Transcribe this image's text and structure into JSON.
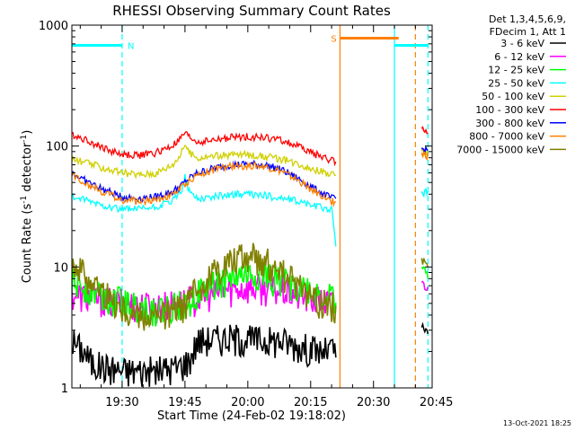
{
  "chart_data": {
    "type": "line",
    "title": "RHESSI Observing Summary Count Rates",
    "xlabel": "Start Time (24-Feb-02 19:18:02)",
    "ylabel_main": "Count Rate (s",
    "ylabel_sup1": "-1",
    "ylabel_mid": " detector",
    "ylabel_sup2": "-1",
    "ylabel_end": ")",
    "yscale": "log",
    "ylim": [
      1,
      1000
    ],
    "xlim_minutes": [
      0,
      86
    ],
    "xtick_labels": [
      "19:30",
      "19:45",
      "20:00",
      "20:15",
      "20:30",
      "20:45"
    ],
    "xtick_minutes": [
      12,
      27,
      42,
      57,
      72,
      87
    ],
    "ytick_labels": [
      "1",
      "10",
      "100",
      "1000"
    ],
    "ytick_values": [
      1,
      10,
      100,
      1000
    ],
    "legend_header": [
      "Det 1,3,4,5,6,9,",
      "FDecim 1, Att 1"
    ],
    "legend_position": "top-right",
    "series": [
      {
        "name": "3 - 6 keV",
        "color": "#000000",
        "x": [
          0,
          3,
          5,
          8,
          12,
          15,
          20,
          25,
          28,
          30,
          35,
          40,
          45,
          50,
          55,
          60,
          62,
          63
        ],
        "y": [
          2.5,
          2.0,
          1.6,
          1.5,
          1.4,
          1.4,
          1.4,
          1.5,
          1.7,
          2.5,
          2.6,
          2.6,
          2.5,
          2.5,
          2.2,
          2.0,
          2.1,
          2.0
        ],
        "post_x": [
          83.5,
          85
        ],
        "post_y": [
          3.2,
          2.8
        ]
      },
      {
        "name": "6 - 12 keV",
        "color": "#ff00ff",
        "x": [
          0,
          5,
          10,
          15,
          20,
          25,
          30,
          35,
          40,
          45,
          50,
          55,
          60,
          63
        ],
        "y": [
          6.0,
          5.6,
          5.2,
          4.9,
          4.8,
          5.0,
          5.6,
          6.3,
          6.8,
          6.8,
          6.4,
          5.8,
          5.2,
          5.0
        ],
        "post_x": [
          83.5,
          85
        ],
        "post_y": [
          7.5,
          6.5
        ]
      },
      {
        "name": "12 - 25 keV",
        "color": "#00ff00",
        "x": [
          0,
          5,
          10,
          15,
          20,
          25,
          30,
          35,
          40,
          45,
          50,
          55,
          60,
          63
        ],
        "y": [
          7.5,
          6.5,
          5.5,
          4.8,
          4.4,
          4.8,
          6.0,
          7.5,
          8.5,
          8.5,
          7.8,
          6.8,
          5.8,
          5.5
        ],
        "post_x": [
          83.5,
          85
        ],
        "post_y": [
          10.0,
          8.5
        ]
      },
      {
        "name": "25 - 50 keV",
        "color": "#00ffff",
        "x": [
          0,
          4,
          8,
          12,
          16,
          20,
          24,
          26,
          27,
          28,
          30,
          34,
          38,
          42,
          46,
          50,
          54,
          58,
          62,
          63
        ],
        "y": [
          38,
          35,
          32,
          30,
          30,
          31,
          35,
          42,
          55,
          42,
          37,
          38,
          40,
          40,
          39,
          37,
          35,
          32,
          30,
          15
        ],
        "post_x": [
          83.5,
          85
        ],
        "post_y": [
          42,
          42
        ]
      },
      {
        "name": "50 - 100 keV",
        "color": "#d0d000",
        "x": [
          0,
          4,
          8,
          12,
          16,
          20,
          24,
          26,
          27,
          28,
          30,
          34,
          38,
          42,
          46,
          50,
          54,
          58,
          62,
          63
        ],
        "y": [
          78,
          72,
          65,
          60,
          58,
          60,
          70,
          85,
          105,
          88,
          80,
          83,
          85,
          85,
          82,
          78,
          72,
          64,
          58,
          58
        ],
        "post_x": [
          83.5,
          85
        ],
        "post_y": [
          90,
          88
        ]
      },
      {
        "name": "100 - 300 keV",
        "color": "#ff0000",
        "x": [
          0,
          4,
          8,
          12,
          16,
          20,
          24,
          26,
          27,
          28,
          30,
          34,
          38,
          42,
          46,
          50,
          54,
          58,
          62,
          63
        ],
        "y": [
          125,
          110,
          95,
          85,
          84,
          88,
          100,
          115,
          128,
          118,
          108,
          112,
          118,
          120,
          118,
          112,
          100,
          86,
          76,
          75
        ],
        "post_x": [
          83.5,
          85
        ],
        "post_y": [
          138,
          135
        ]
      },
      {
        "name": "300 - 800 keV",
        "color": "#0000ff",
        "x": [
          0,
          4,
          8,
          12,
          16,
          20,
          24,
          26,
          28,
          30,
          34,
          38,
          42,
          46,
          50,
          54,
          58,
          62,
          63
        ],
        "y": [
          60,
          50,
          43,
          38,
          37,
          38,
          42,
          47,
          54,
          60,
          66,
          70,
          71,
          70,
          64,
          54,
          44,
          37,
          37
        ],
        "post_x": [
          83.5,
          85
        ],
        "post_y": [
          95,
          92
        ]
      },
      {
        "name": "800 - 7000 keV",
        "color": "#ff8000",
        "x": [
          0,
          4,
          8,
          12,
          16,
          20,
          24,
          26,
          28,
          30,
          34,
          38,
          42,
          46,
          50,
          54,
          58,
          62,
          63
        ],
        "y": [
          58,
          48,
          41,
          36,
          35,
          36,
          40,
          45,
          52,
          58,
          64,
          68,
          69,
          68,
          62,
          52,
          42,
          35,
          35
        ],
        "post_x": [
          83.5,
          85
        ],
        "post_y": [
          86,
          84
        ]
      },
      {
        "name": "7000 - 15000 keV",
        "color": "#808000",
        "x": [
          0,
          3,
          6,
          9,
          12,
          15,
          18,
          21,
          24,
          27,
          30,
          33,
          36,
          39,
          42,
          45,
          48,
          51,
          54,
          57,
          60,
          63
        ],
        "y": [
          11.5,
          9.0,
          7.0,
          5.5,
          4.6,
          4.1,
          3.9,
          3.9,
          4.2,
          5.0,
          6.5,
          8.5,
          10.5,
          12.0,
          12.5,
          12.0,
          10.5,
          8.5,
          7.0,
          5.8,
          5.0,
          4.8
        ],
        "post_x": [
          83.5,
          85
        ],
        "post_y": [
          11.5,
          10.5
        ]
      }
    ],
    "annotations": [
      {
        "label": "N",
        "color": "#00ffff",
        "x_start": 0,
        "x_end": 12,
        "y_level": 680
      },
      {
        "label": "S",
        "color": "#ff8000",
        "x_start": 64,
        "x_end": 78,
        "y_level": 780
      },
      {
        "label": "",
        "color": "#00ffff",
        "x_start": 77,
        "x_end": 85,
        "y_level": 680
      }
    ],
    "vertical_markers": [
      {
        "x": 12,
        "color": "#00ffff",
        "style": "dashed"
      },
      {
        "x": 64,
        "color": "#ff8000",
        "style": "solid"
      },
      {
        "x": 77,
        "color": "#00ffff",
        "style": "solid"
      },
      {
        "x": 82,
        "color": "#ff8000",
        "style": "dashed"
      },
      {
        "x": 85,
        "color": "#00ffff",
        "style": "dashed"
      }
    ],
    "grid": false,
    "timestamp": "13-Oct-2021 18:25"
  }
}
